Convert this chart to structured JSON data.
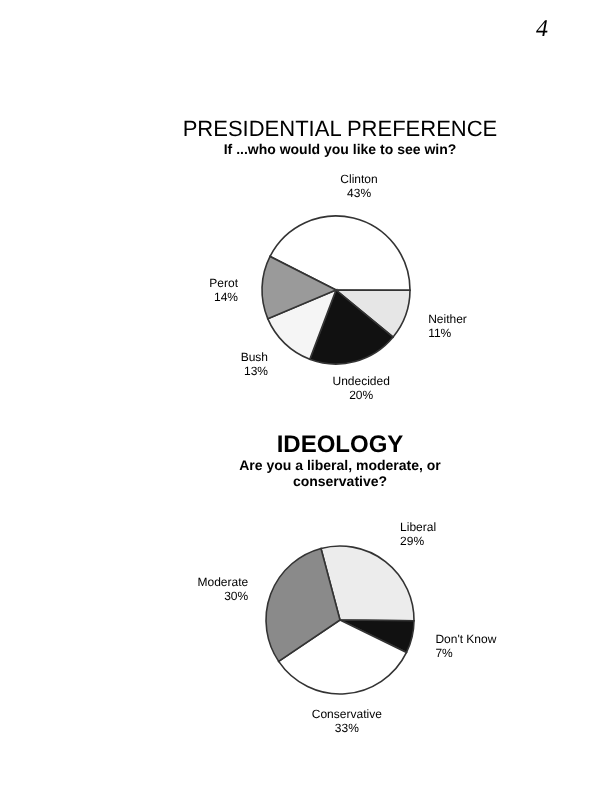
{
  "chart_data": [
    {
      "type": "pie",
      "title": "PRESIDENTIAL PREFERENCE",
      "subtitle": "If ...who would you like to see win?",
      "categories": [
        "Clinton",
        "Neither",
        "Undecided",
        "Bush",
        "Perot"
      ],
      "values": [
        43,
        11,
        20,
        13,
        14
      ],
      "value_labels": [
        "43%",
        "11%",
        "20%",
        "13%",
        "14%"
      ],
      "colors": [
        "#ffffff",
        "#e6e6e6",
        "#111111",
        "#f5f5f5",
        "#9a9a9a"
      ],
      "annotations": [
        "4"
      ]
    },
    {
      "type": "pie",
      "title": "IDEOLOGY",
      "subtitle": "Are you a liberal, moderate, or conservative?",
      "categories": [
        "Liberal",
        "Don't Know",
        "Conservative",
        "Moderate"
      ],
      "values": [
        29,
        7,
        33,
        30
      ],
      "value_labels": [
        "29%",
        "7%",
        "33%",
        "30%"
      ],
      "colors": [
        "#ececec",
        "#111111",
        "#ffffff",
        "#8a8a8a"
      ]
    }
  ]
}
